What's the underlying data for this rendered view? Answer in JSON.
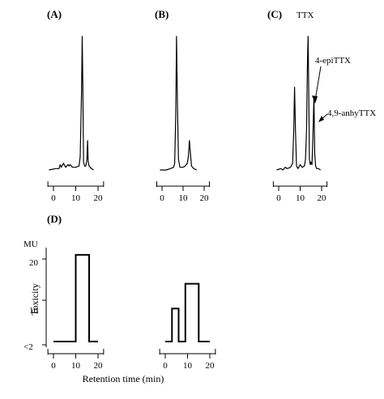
{
  "chart_data": [
    {
      "panel": "(A)",
      "type": "line",
      "x_ticks": [
        0,
        10,
        20
      ],
      "xlim": [
        -3,
        22
      ],
      "ylim": [
        0,
        100
      ],
      "series": [
        {
          "x": [
            -2.0,
            1.0,
            2.5,
            3.0,
            3.5,
            4.5,
            5.5,
            6.5,
            7.0,
            7.5,
            8.5,
            10.0,
            11.5,
            12.0,
            12.6,
            12.9,
            13.2,
            13.5,
            14.0,
            14.5,
            15.0,
            15.3,
            15.6,
            16.0,
            16.5,
            17.0,
            18.0
          ],
          "y": [
            0,
            1,
            1,
            4,
            2,
            5,
            2,
            4,
            3,
            4,
            2,
            2,
            3,
            10,
            60,
            100,
            60,
            6,
            3,
            3,
            8,
            22,
            6,
            3,
            2,
            1,
            0
          ]
        }
      ]
    },
    {
      "panel": "(B)",
      "type": "line",
      "x_ticks": [
        0,
        10,
        20
      ],
      "xlim": [
        -3,
        22
      ],
      "ylim": [
        0,
        100
      ],
      "series": [
        {
          "x": [
            -1.0,
            2.0,
            4.0,
            5.5,
            6.0,
            6.5,
            6.9,
            7.3,
            7.8,
            8.5,
            10.0,
            11.0,
            12.0,
            12.5,
            13.0,
            13.5,
            14.0,
            15.0,
            16.5
          ],
          "y": [
            0,
            0,
            1,
            2,
            5,
            40,
            100,
            50,
            8,
            2,
            2,
            3,
            5,
            10,
            22,
            12,
            3,
            1,
            0
          ]
        }
      ]
    },
    {
      "panel": "(C)",
      "type": "line",
      "x_ticks": [
        0,
        10,
        20
      ],
      "xlim": [
        -3,
        22
      ],
      "ylim": [
        0,
        100
      ],
      "annotations": [
        "TTX",
        "4-epiTTX",
        "4,9-anhyTTX"
      ],
      "series": [
        {
          "x": [
            -1.0,
            1.0,
            2.0,
            3.0,
            4.0,
            5.5,
            6.5,
            7.0,
            7.4,
            7.8,
            8.3,
            9.0,
            10.0,
            11.0,
            12.0,
            12.5,
            13.0,
            13.4,
            13.7,
            14.0,
            14.3,
            14.7,
            15.1,
            15.5,
            16.0,
            16.4,
            16.8,
            17.2,
            17.7,
            18.5,
            19.5
          ],
          "y": [
            0,
            1,
            0,
            2,
            1,
            2,
            5,
            30,
            62,
            30,
            3,
            1,
            4,
            2,
            3,
            8,
            30,
            80,
            100,
            60,
            8,
            4,
            6,
            4,
            28,
            55,
            12,
            3,
            1,
            1,
            0
          ]
        }
      ]
    },
    {
      "panel": "(D)",
      "type": "bar",
      "ylabel": "Toxicity",
      "y_unit": "MU",
      "y_ticks": [
        "<2",
        "10",
        "20"
      ],
      "x_ticks": [
        0,
        10,
        20
      ],
      "xlabel": "Retention time (min)",
      "ylim": [
        0,
        22
      ],
      "charts": [
        {
          "bins": [
            {
              "x0": 0,
              "x1": 10,
              "value": 0
            },
            {
              "x0": 10,
              "x1": 16,
              "value": 21
            },
            {
              "x0": 16,
              "x1": 20,
              "value": 0
            }
          ]
        },
        {
          "bins": [
            {
              "x0": 0,
              "x1": 3,
              "value": 0
            },
            {
              "x0": 3,
              "x1": 6,
              "value": 8
            },
            {
              "x0": 6,
              "x1": 9,
              "value": 0
            },
            {
              "x0": 9,
              "x1": 15,
              "value": 14
            },
            {
              "x0": 15,
              "x1": 20,
              "value": 0
            }
          ]
        }
      ]
    }
  ]
}
